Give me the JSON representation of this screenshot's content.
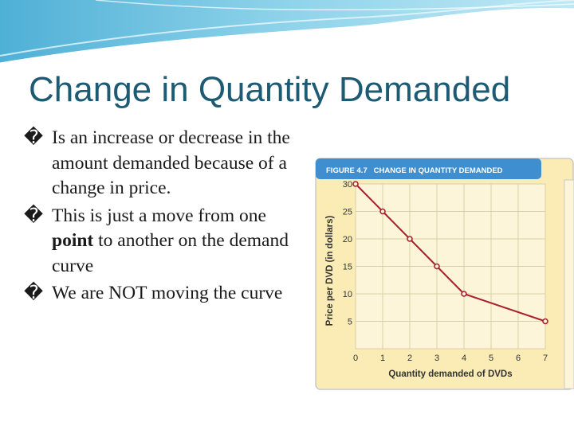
{
  "slide": {
    "title": "Change in Quantity Demanded",
    "bullet_marker": "�",
    "bullets": [
      {
        "text": "Is an increase or decrease in the amount demanded because of a change in price."
      },
      {
        "text_before": "This is just a move from one ",
        "bold": "point",
        "text_after": " to another on the demand curve"
      },
      {
        "text": "We are NOT moving the curve"
      }
    ]
  },
  "colors": {
    "title": "#1d5a73",
    "chart_header": "#3f8fd0",
    "chart_background": "#fbecb5",
    "grid_fill": "#fdf5d9",
    "line": "#a8202e"
  },
  "chart_data": {
    "type": "line",
    "header": "FIGURE 4.7   CHANGE IN QUANTITY DEMANDED",
    "xlabel": "Quantity demanded of DVDs",
    "ylabel": "Price per DVD (in dollars)",
    "xlim": [
      0,
      7
    ],
    "ylim": [
      0,
      30
    ],
    "x_ticks": [
      0,
      1,
      2,
      3,
      4,
      5,
      6,
      7
    ],
    "y_ticks": [
      5,
      10,
      15,
      20,
      25,
      30
    ],
    "grid": true,
    "series": [
      {
        "x": [
          0,
          1,
          2,
          3,
          4,
          7
        ],
        "y": [
          30,
          25,
          20,
          15,
          10,
          5
        ]
      }
    ]
  }
}
